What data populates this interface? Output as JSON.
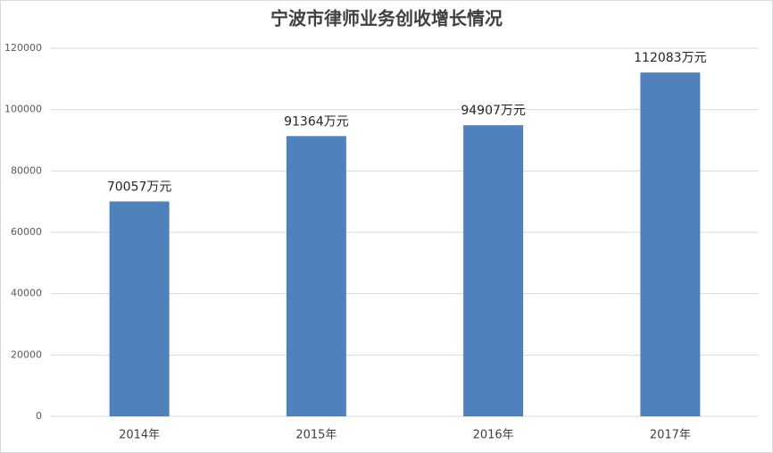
{
  "chart_data": {
    "type": "bar",
    "title": "宁波市律师业务创收增长情况",
    "categories": [
      "2014年",
      "2015年",
      "2016年",
      "2017年"
    ],
    "values": [
      70057,
      91364,
      94907,
      112083
    ],
    "value_labels": [
      "70057万元",
      "91364万元",
      "94907万元",
      "112083万元"
    ],
    "color": "#4f81bd",
    "ylim": [
      0,
      120000
    ],
    "yticks": [
      0,
      20000,
      40000,
      60000,
      80000,
      100000,
      120000
    ],
    "grid": true
  }
}
